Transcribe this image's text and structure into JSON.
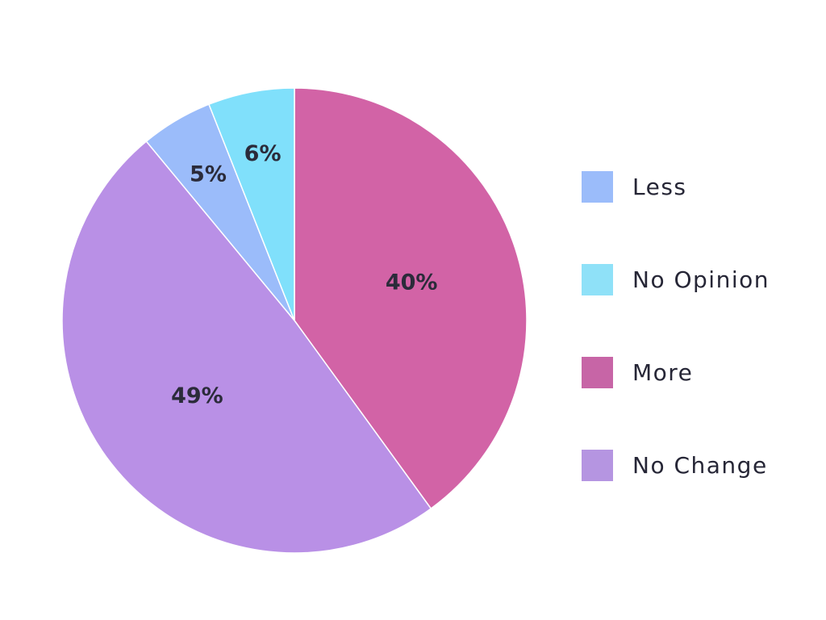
{
  "chart_data": {
    "type": "pie",
    "categories": [
      "More",
      "No Change",
      "Less",
      "No Opinion"
    ],
    "values": [
      40,
      49,
      5,
      6
    ],
    "labels": [
      "40%",
      "49%",
      "5%",
      "6%"
    ],
    "colors": [
      "#d263a6",
      "#b990e6",
      "#9bbcfa",
      "#80e0fb"
    ],
    "start_angle": "12 o'clock",
    "direction": "clockwise",
    "legend": {
      "position": "right",
      "items": [
        {
          "label": "Less",
          "color": "#9bbcfa"
        },
        {
          "label": "No Opinion",
          "color": "#8fe1f8"
        },
        {
          "label": "More",
          "color": "#c765a6"
        },
        {
          "label": "No Change",
          "color": "#b595e1"
        }
      ]
    }
  }
}
